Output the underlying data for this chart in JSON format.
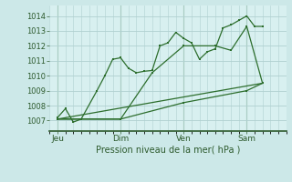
{
  "background_color": "#cce8e8",
  "plot_bg_color": "#d8f0f0",
  "grid_color": "#b0d0d0",
  "line_color": "#2d6e2d",
  "title": "Pression niveau de la mer( hPa )",
  "yticks": [
    1007,
    1008,
    1009,
    1010,
    1011,
    1012,
    1013,
    1014
  ],
  "ylim": [
    1006.3,
    1014.7
  ],
  "xtick_labels": [
    "Jeu",
    "Dim",
    "Ven",
    "Sam"
  ],
  "xtick_positions": [
    0,
    4,
    8,
    12
  ],
  "xlim": [
    -0.5,
    14.5
  ],
  "vlines": [
    0,
    4,
    8,
    12
  ],
  "series1_x": [
    0,
    0.5,
    1,
    1.5,
    2.5,
    3,
    3.5,
    4,
    4.5,
    5,
    5.5,
    6,
    6.5,
    7,
    7.5,
    8,
    8.5,
    9,
    9.5,
    10,
    10.5,
    11,
    11.5,
    12,
    12.5,
    13
  ],
  "series1_y": [
    1007.2,
    1007.8,
    1006.9,
    1007.1,
    1009.0,
    1010.0,
    1011.1,
    1011.2,
    1010.5,
    1010.2,
    1010.3,
    1010.35,
    1012.0,
    1012.2,
    1012.9,
    1012.5,
    1012.2,
    1011.1,
    1011.6,
    1011.8,
    1013.2,
    1013.4,
    1013.7,
    1014.0,
    1013.3,
    1013.3
  ],
  "series2_x": [
    0,
    4,
    6,
    8,
    10,
    11,
    12,
    13
  ],
  "series2_y": [
    1007.1,
    1007.1,
    1010.2,
    1012.0,
    1012.0,
    1011.7,
    1013.3,
    1009.5
  ],
  "series3_x": [
    0,
    4,
    8,
    12,
    13
  ],
  "series3_y": [
    1007.1,
    1007.1,
    1008.2,
    1009.0,
    1009.5
  ],
  "series4_x": [
    0,
    13
  ],
  "series4_y": [
    1007.1,
    1009.5
  ]
}
